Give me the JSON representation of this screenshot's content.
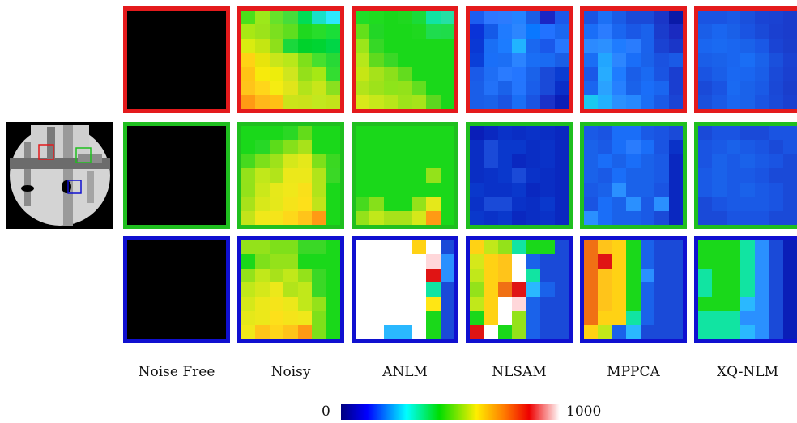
{
  "columns": [
    "Noise Free",
    "Noisy",
    "ANLM",
    "NLSAM",
    "MPPCA",
    "XQ-NLM"
  ],
  "row_frame_colors": [
    "#e41a1c",
    "#1fbf1f",
    "#1010d0"
  ],
  "colorbar": {
    "min_label": "0",
    "max_label": "1000",
    "colormap": "jet-to-white"
  },
  "cells": [
    [
      "#000000 #000000 #000000 #000000 #000000 #000000 #000000 #000000 #000000 #000000 #000000 #000000 #000000 #000000 #000000 #000000 #000000 #000000 #000000 #000000 #000000 #000000 #000000 #000000 #000000 #000000 #000000 #000000 #000000 #000000 #000000 #000000 #000000 #000000 #000000 #000000 #000000 #000000 #000000 #000000 #000000 #000000 #000000 #000000 #000000 #000000 #000000 #000000 #000000",
      "#4be01a #9ce81a #66e22a #46dd3a #00dd55 #19e0c8 #2ce8ff #a8e814 #9ce31a #7be01f #5fde1f #1fd81f #27dd2a #1ade38 #d9ec10 #c4e612 #8ee01a #1ad83c #00d22c #00d432 #00d646 #ffd214 #e8e40c #c9e61a #b8e81a #7ee01a #46e02e #27d936 #ffc414 #f7ea0c #eded0c #cfe61e #94e01a #a6e814 #33dd31 #ffc41a #ffd61a #f5ec12 #e1e51a #b2e41a #c8e61a #8ae01f #ff9a14 #ffb81a #ffc014 #cbe41a #cae21a #c2e81e #c2e41a",
      "#1fde27 #1fdc1f #1ad81a #1fd81f #1adb38 #11e4a2 #25e0a4 #63e01a #22d626 #1ad81a #1ad81a #1fd81f #1fdc4e #1fdc4a #9be61a #36d826 #1ad81a #1ad81a #1ad81a #1ad81a #1ad81a #b6e81a #5fda1e #3ad826 #1ad81a #1ad81a #1ad81a #1ad81a #c6e614 #a6e21a #8ce01a #63dc1e #1ad81a #1ad81a #1ad81a #b2e41a #9ee21a #8ee41a #93e21a #63de1f #1ad81a #1ad81a #d8e81a #c7e81a #b8e61a #9de41a #a6e41a #5cd81f #1ad81a",
      "#1c5df0 #2d77ff #2c7bfe #2483ff #1a5ee6 #1a26c4 #1c58ea #0a33d8 #145ae8 #1f7bff #2c86ff #0a78ff #2272ff #1a67f0 #0a38d4 #1a6ff5 #1c7cff #21b4ff #1a68f0 #1a58ea #2677ff #0a3fd8 #1a6ff8 #1c6ff5 #2b84ff #1a6ef5 #1a6bf2 #1a5ee6 #1a5ae8 #1f6ef5 #2a7bff #2476ff #1a62ea #1a4ad8 #0a3cd2 #1a5ee8 #2271f8 #1a62ea #2476fd #1a5eea #1a4ad8 #0a2ec8 #1a5ee8 #1a62ea #1a54e2 #1a6ef5 #1a54e2 #1a32c8 #0a1eb8",
      "#1a54e2 #1c70f5 #1a5ce6 #1a4ad8 #1a4ad8 #1a36c8 #0a1aa8 #1a6ef8 #2b7cff #1a66f0 #1a58e6 #1a62ec #1a3ccc #1a2ac0 #2c8aff #2c90ff #1f7cff #2a7cfd #1a62ec #1a42d2 #1a36c8 #1a6ef5 #22a6ff #2c86ff #1a6ef8 #1a62ea #1a52e0 #1a5ae6 #1a58e8 #27acff #1f7cff #1a5ee8 #1a6af2 #1a54e2 #1a3ed0 #1a66f0 #2aa2ff #2680ff #1a62ea #1a6ef8 #1a66f0 #1a3ed0 #1ac8f0 #22b0ff #2a90ff #2688ff #1a6ef5 #1a5ae6 #1a44d4",
      "#1a54e2 #1a54e2 #1a5ae6 #1a50dc #1a44d4 #1a42d2 #1a3ccc #1a5ee8 #1a66f0 #1a60e8 #1a54e2 #1a4ad8 #1a40d0 #1a3ccc #1a66f0 #1a6af2 #1a66f0 #1a62ea #1a58e6 #1a44d4 #1a3ecc #1a5ee8 #1a62ea #1a66f0 #1a6ef5 #1a62ea #1a50dc #1a42d2 #1a54e2 #1a5ee8 #1a68f2 #1a66f0 #1a5ee8 #1a4ad8 #1a40d0 #1a4ad8 #1a54e2 #1a6af2 #1a62ea #1a5ae6 #1a48d6 #1a3ecc #1a50dc #1a5ae6 #1a66f0 #1a62ea #1a54e2 #1a4ad8 #1a40d0"
    ],
    [
      "#000000 #000000 #000000 #000000 #000000 #000000 #000000 #000000 #000000 #000000 #000000 #000000 #000000 #000000 #000000 #000000 #000000 #000000 #000000 #000000 #000000 #000000 #000000 #000000 #000000 #000000 #000000 #000000 #000000 #000000 #000000 #000000 #000000 #000000 #000000 #000000 #000000 #000000 #000000 #000000 #000000 #000000 #000000 #000000 #000000 #000000 #000000 #000000 #000000",
      "#1ad81a #1ad81a #1ad81a #2ad824 #63dc1a #1ad81a #1ad81a #1ad81a #27d826 #5cdc1a #86e01a #a8e21a #1ad81a #1ad81a #46da1e #7ce01a #9ee21a #d5e81a #e5e81a #7ee01a #3ad822 #94e21a #c1e81a #b2e41a #ece81a #ece81a #b1e41a #3ad826 #93e21a #cbe81a #e6e81a #f0e81a #f9e01a #b2e41a #1ad81a #a8e21a #d8e81a #e5e81a #f5e41a #fde01a #c0e41a #1ad81a #c2e41a #f0e81a #f5e41a #fdd81a #ffc41a #ff9a14 #1ad81a",
      "#1ad81a #1ad81a #1ad81a #1ad81a #1ad81a #1ad81a #1ad81a #1ad81a #1ad81a #1ad81a #1ad81a #1ad81a #1ad81a #1ad81a #1ad81a #1ad81a #1ad81a #1ad81a #1ad81a #1ad81a #1ad81a #1ad81a #1ad81a #1ad81a #1ad81a #1ad81a #94e21a #1ad81a #1ad81a #1ad81a #1ad81a #1ad81a #1ad81a #1ad81a #1ad81a #46da1e #86e01a #1ad81a #1ad81a #94e21a #e5e81a #1ad81a #94e21a #c1e81a #a8e21a #a8e21a #d5e81a #ff9a14 #1ad81a",
      "#0a1eb8 #0a28c0 #0a32c8 #0a2ec4 #0a32c8 #0a2ec4 #0a28c0 #0a2ec4 #1a4ad8 #0a38cc #0a38cc #0a2ec4 #0a32c8 #0a28c0 #0a2ec4 #1a4ad8 #0a38cc #0a28c0 #0a2ec4 #0a32c8 #0a28c0 #0a2ec4 #0a32c8 #0a38cc #1a4ad8 #0a32c8 #0a2ec4 #0a28c0 #0a38cc #0a32c8 #0a32c8 #0a38cc #0a28c0 #0a2ec4 #0a28c0 #0a32c8 #1a4ad8 #1a4ad8 #0a32c8 #0a2ec4 #0a38cc #0a28c0 #0a38cc #0a32c8 #0a38cc #0a28c0 #0a2ec4 #0a32c8 #0a28c0",
      "#1a5ae6 #1a54e2 #1a6ef8 #1a6ef8 #1a5ae6 #1a54e2 #1a4ad8 #1a62ea #1a5ae6 #1a6ef8 #2a7cfd #1a6ef8 #1a54e2 #0a32c8 #1a62ea #1a6ef8 #1a62ea #1a6ef8 #1a62ea #1a5ae6 #0a28c0 #1a62ea #1a5ae6 #1a6ef8 #1a62ea #1a62ea #1a5ae6 #0a28c0 #1a5ae6 #1a62ea #2a90ff #1a62ea #1a62ea #1a54e2 #0a28c0 #1a54e2 #1a6ef8 #1a62ea #2a90ff #1a5ae6 #2a90ff #0a28c0 #2a90ff #1a6ef8 #1a62ea #1a62ea #1a5ae6 #1a4ad8 #0a28c0",
      "#1a4ad8 #1a54e2 #1a54e2 #1a4ad8 #1a4ad8 #1a54e2 #1a54e2 #1a54e2 #1a5ae6 #1a62ea #1a5ae6 #1a54e2 #1a4ad8 #1a54e2 #1a54e2 #1a62ea #1a5ae6 #1a62ea #1a5ae6 #1a54e2 #1a4ad8 #1a5ae6 #1a62ea #1a5ae6 #1a5ae6 #1a54e2 #1a4ad8 #1a4ad8 #1a5ae6 #1a62ea #1a5ae6 #1a62ea #1a5ae6 #1a54e2 #1a4ad8 #1a4ad8 #1a54e2 #1a5ae6 #1a5ae6 #1a5ae6 #1a54e2 #1a4ad8 #1a4ad8 #1a4ad8 #1a54e2 #1a54e2 #1a54e2 #1a4ad8 #1a4ad8"
    ],
    [
      "#000000 #000000 #000000 #000000 #000000 #000000 #000000 #000000 #000000 #000000 #000000 #000000 #000000 #000000 #000000 #000000 #000000 #000000 #000000 #000000 #000000 #000000 #000000 #000000 #000000 #000000 #000000 #000000 #000000 #000000 #000000 #000000 #000000 #000000 #000000 #000000 #000000 #000000 #000000 #000000 #000000 #000000 #000000 #000000 #000000 #000000 #000000 #000000 #000000",
      "#94e21a #94e21a #7ee01a #7ee01a #3ad826 #3ad826 #1ad81a #1ad81a #7ee01a #94e21a #94e21a #1ad81a #1ad81a #1ad81a #94e21a #c1e81a #a8e21a #c1e81a #94e21a #3ad826 #1ad81a #c1e81a #d5e81a #ece81a #b2e41a #c1e81a #3ad826 #1ad81a #d5e81a #ece81a #f5e41a #ece81a #c1e81a #94e21a #1ad81a #e5e81a #ece81a #fde01a #f5e41a #f0e81a #7ee01a #1ad81a #f0e81a #ffc41a #ffd61a #ffc41a #ff9a14 #7ee01a #1ad81a",
      "#ffffff #ffffff #ffffff #ffffff #ffd214 #ffffff #1a4ad8 #ffffff #ffffff #ffffff #ffffff #ffffff #ffd7da #2a90ff #ffffff #ffffff #ffffff #ffffff #ffffff #e01414 #2a90ff #ffffff #ffffff #ffffff #ffffff #ffffff #11e4a2 #1a4ad8 #ffffff #ffffff #ffffff #ffffff #ffffff #ffe614 #1a4ad8 #ffffff #ffffff #ffffff #ffffff #ffffff #1ad81a #1a4ad8 #ffffff #ffffff #2ab8ff #2ab8ff #ffffff #1ad81a #1a4ad8",
      "#ffd214 #c1e81a #94e21a #11e4a2 #1ad81a #1ad81a #1a4ad8 #d5e81a #ffd214 #ffc41a #ffffff #1a62ea #1a4ad8 #1a4ad8 #c1e81a #ffd214 #ffc41a #ffffff #11e4a2 #1a4ad8 #1a4ad8 #94e21a #ffd214 #f07014 #e01414 #2ab8ff #1a62ea #1a4ad8 #c1e81a #ffd214 #ffffff #ffd7da #1a62ea #1a4ad8 #1a4ad8 #1ad81a #ffd214 #ffffff #94e21a #1a62ea #1a4ad8 #1a4ad8 #e01414 #ffffff #1ad81a #94e21a #1a62ea #1a4ad8 #1a4ad8",
      "#f07014 #ffc41a #ffd214 #1ad81a #1a62ea #1a4ad8 #1a4ad8 #f07014 #e01414 #ffd214 #1ad81a #1a62ea #1a4ad8 #1a4ad8 #f07014 #ffc41a #ffd214 #1ad81a #2a90ff #1a4ad8 #1a4ad8 #f07014 #ffc41a #ffd214 #1ad81a #1a62ea #1a4ad8 #1a4ad8 #f07014 #ffc41a #ffd214 #1ad81a #1a62ea #1a4ad8 #1a4ad8 #f07014 #ffd214 #ffd214 #11e4a2 #1a62ea #1a4ad8 #1a4ad8 #ffd214 #c1e81a #1a62ea #2ab8ff #1a4ad8 #1a4ad8 #1a4ad8",
      "#1ad81a #1ad81a #1ad81a #11e4a2 #2a90ff #1a4ad8 #0a1eb8 #1ad81a #1ad81a #1ad81a #11e4a2 #2a90ff #1a4ad8 #0a1eb8 #11e4a2 #1ad81a #1ad81a #11e4a2 #2a90ff #1a4ad8 #0a1eb8 #11e4a2 #1ad81a #1ad81a #11e4a2 #2a90ff #1a4ad8 #0a1eb8 #1ad81a #1ad81a #1ad81a #2ab8ff #2a90ff #1a4ad8 #0a1eb8 #11e4a2 #11e4a2 #11e4a2 #2a90ff #2a90ff #1a4ad8 #0a1eb8 #11e4a2 #11e4a2 #11e4a2 #2ab8ff #2a90ff #1a4ad8 #0a1eb8"
    ]
  ]
}
